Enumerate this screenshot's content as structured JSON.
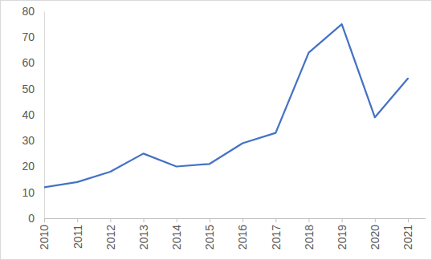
{
  "chart_data": {
    "type": "line",
    "categories": [
      "2010",
      "2011",
      "2012",
      "2013",
      "2014",
      "2015",
      "2016",
      "2017",
      "2018",
      "2019",
      "2020",
      "2021"
    ],
    "values": [
      12,
      14,
      18,
      25,
      20,
      21,
      29,
      33,
      64,
      75,
      39,
      54
    ],
    "color": "#4472c4",
    "ylim": [
      0,
      80
    ],
    "yticks": [
      0,
      10,
      20,
      30,
      40,
      50,
      60,
      70,
      80
    ],
    "grid": false
  }
}
